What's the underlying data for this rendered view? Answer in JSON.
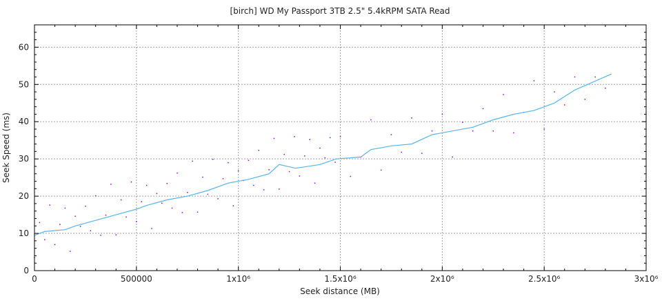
{
  "chart_data": {
    "type": "scatter",
    "title": "[birch] WD My Passport 3TB 2.5\" 5.4kRPM SATA Read",
    "xlabel": "Seek distance (MB)",
    "ylabel": "Seek Speed (ms)",
    "xlim": [
      0,
      3000000
    ],
    "ylim": [
      0,
      66
    ],
    "grid": true,
    "x_ticks": [
      {
        "value": 0,
        "label": "0"
      },
      {
        "value": 500000,
        "label": "500000"
      },
      {
        "value": 1000000,
        "label": "1x10⁶"
      },
      {
        "value": 1500000,
        "label": "1.5x10⁶"
      },
      {
        "value": 2000000,
        "label": "2x10⁶"
      },
      {
        "value": 2500000,
        "label": "2.5x10⁶"
      },
      {
        "value": 3000000,
        "label": "3x10⁶"
      }
    ],
    "y_ticks": [
      {
        "value": 0,
        "label": "0"
      },
      {
        "value": 10,
        "label": "10"
      },
      {
        "value": 20,
        "label": "20"
      },
      {
        "value": 30,
        "label": "30"
      },
      {
        "value": 40,
        "label": "40"
      },
      {
        "value": 50,
        "label": "50"
      },
      {
        "value": 60,
        "label": "60"
      }
    ],
    "colors": {
      "points": "#9400d3",
      "trend": "#56b4e9",
      "grid": "#a0a0a0"
    },
    "series": [
      {
        "type": "scatter",
        "points": [
          [
            0,
            3.5
          ],
          [
            25000,
            12.9
          ],
          [
            50000,
            8.3
          ],
          [
            75000,
            17.6
          ],
          [
            100000,
            7.0
          ],
          [
            125000,
            12.4
          ],
          [
            150000,
            16.8
          ],
          [
            175000,
            5.2
          ],
          [
            200000,
            14.6
          ],
          [
            225000,
            11.9
          ],
          [
            250000,
            17.3
          ],
          [
            275000,
            10.7
          ],
          [
            300000,
            20.1
          ],
          [
            325000,
            9.5
          ],
          [
            350000,
            14.9
          ],
          [
            375000,
            23.2
          ],
          [
            400000,
            9.6
          ],
          [
            425000,
            19.0
          ],
          [
            450000,
            14.4
          ],
          [
            475000,
            23.8
          ],
          [
            500000,
            13.2
          ],
          [
            525000,
            18.5
          ],
          [
            550000,
            22.9
          ],
          [
            575000,
            11.3
          ],
          [
            600000,
            20.7
          ],
          [
            625000,
            18.1
          ],
          [
            650000,
            23.4
          ],
          [
            675000,
            16.8
          ],
          [
            700000,
            26.2
          ],
          [
            725000,
            15.6
          ],
          [
            750000,
            21.0
          ],
          [
            775000,
            29.4
          ],
          [
            800000,
            15.7
          ],
          [
            825000,
            25.1
          ],
          [
            850000,
            20.5
          ],
          [
            875000,
            29.9
          ],
          [
            900000,
            19.3
          ],
          [
            925000,
            24.7
          ],
          [
            950000,
            29.0
          ],
          [
            975000,
            17.4
          ],
          [
            1000000,
            26.8
          ],
          [
            1025000,
            24.2
          ],
          [
            1050000,
            29.6
          ],
          [
            1075000,
            22.9
          ],
          [
            1100000,
            32.3
          ],
          [
            1125000,
            21.7
          ],
          [
            1150000,
            27.1
          ],
          [
            1175000,
            35.5
          ],
          [
            1200000,
            21.9
          ],
          [
            1225000,
            31.2
          ],
          [
            1250000,
            26.6
          ],
          [
            1275000,
            36.0
          ],
          [
            1300000,
            25.4
          ],
          [
            1325000,
            30.8
          ],
          [
            1350000,
            35.2
          ],
          [
            1375000,
            23.5
          ],
          [
            1400000,
            32.9
          ],
          [
            1425000,
            30.3
          ],
          [
            1450000,
            35.7
          ],
          [
            1475000,
            29.1
          ],
          [
            1500000,
            36
          ],
          [
            1550000,
            25.3
          ],
          [
            1600000,
            30.5
          ],
          [
            1650000,
            40.5
          ],
          [
            1700000,
            27
          ],
          [
            1750000,
            36.5
          ],
          [
            1800000,
            31.8
          ],
          [
            1850000,
            41
          ],
          [
            1900000,
            31.5
          ],
          [
            1950000,
            37.5
          ],
          [
            2000000,
            42
          ],
          [
            2050000,
            30.5
          ],
          [
            2100000,
            39.8
          ],
          [
            2150000,
            37.5
          ],
          [
            2200000,
            43.5
          ],
          [
            2250000,
            37.5
          ],
          [
            2300000,
            47.3
          ],
          [
            2350000,
            37
          ],
          [
            2400000,
            42.5
          ],
          [
            2450000,
            51
          ],
          [
            2500000,
            38
          ],
          [
            2550000,
            48
          ],
          [
            2600000,
            44.5
          ],
          [
            2650000,
            52
          ],
          [
            2700000,
            46
          ],
          [
            2750000,
            52
          ],
          [
            2800000,
            49
          ]
        ]
      },
      {
        "type": "line",
        "points": [
          [
            0,
            9.5
          ],
          [
            50000,
            10.5
          ],
          [
            150000,
            11
          ],
          [
            200000,
            12
          ],
          [
            300000,
            13.5
          ],
          [
            400000,
            15
          ],
          [
            500000,
            16.5
          ],
          [
            550000,
            17.5
          ],
          [
            650000,
            19
          ],
          [
            750000,
            20
          ],
          [
            850000,
            21.5
          ],
          [
            950000,
            23.5
          ],
          [
            1050000,
            24.5
          ],
          [
            1150000,
            26
          ],
          [
            1200000,
            28.5
          ],
          [
            1280000,
            27.5
          ],
          [
            1400000,
            28.5
          ],
          [
            1480000,
            30
          ],
          [
            1600000,
            30.5
          ],
          [
            1650000,
            32.5
          ],
          [
            1750000,
            33.5
          ],
          [
            1850000,
            34
          ],
          [
            1950000,
            36.5
          ],
          [
            2050000,
            37.5
          ],
          [
            2150000,
            38.5
          ],
          [
            2250000,
            40.5
          ],
          [
            2350000,
            42
          ],
          [
            2450000,
            43
          ],
          [
            2550000,
            45
          ],
          [
            2650000,
            48.5
          ],
          [
            2830000,
            52.8
          ]
        ]
      }
    ]
  }
}
